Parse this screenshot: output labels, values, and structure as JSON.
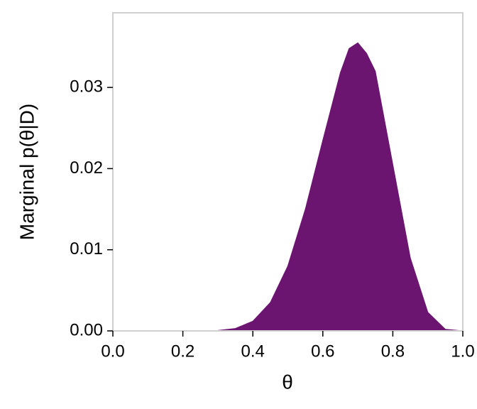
{
  "chart_data": {
    "type": "area",
    "x_label": "θ",
    "y_label": "Marginal p(θ|D)",
    "x": [
      0,
      0.05,
      0.1,
      0.15,
      0.2,
      0.25,
      0.3,
      0.35,
      0.4,
      0.45,
      0.5,
      0.55,
      0.6,
      0.65,
      0.675,
      0.7,
      0.725,
      0.75,
      0.8,
      0.85,
      0.9,
      0.95,
      1.0
    ],
    "values": [
      0,
      0,
      0,
      0,
      0,
      0,
      5e-05,
      0.0003,
      0.0012,
      0.0035,
      0.008,
      0.015,
      0.0235,
      0.0318,
      0.0348,
      0.0355,
      0.0342,
      0.032,
      0.0205,
      0.009,
      0.0023,
      0.0002,
      0
    ],
    "color": "#6b1570",
    "xlim": [
      0,
      1.0
    ],
    "ylim": [
      0,
      0.0392
    ],
    "xticks": [
      {
        "value": 0,
        "label": "0.0"
      },
      0.2,
      0.4,
      0.6,
      0.8,
      {
        "value": 1,
        "label": "1.0"
      }
    ],
    "yticks": [
      {
        "value": 0,
        "label": "0.00"
      },
      0.01,
      0.02,
      0.03
    ]
  }
}
